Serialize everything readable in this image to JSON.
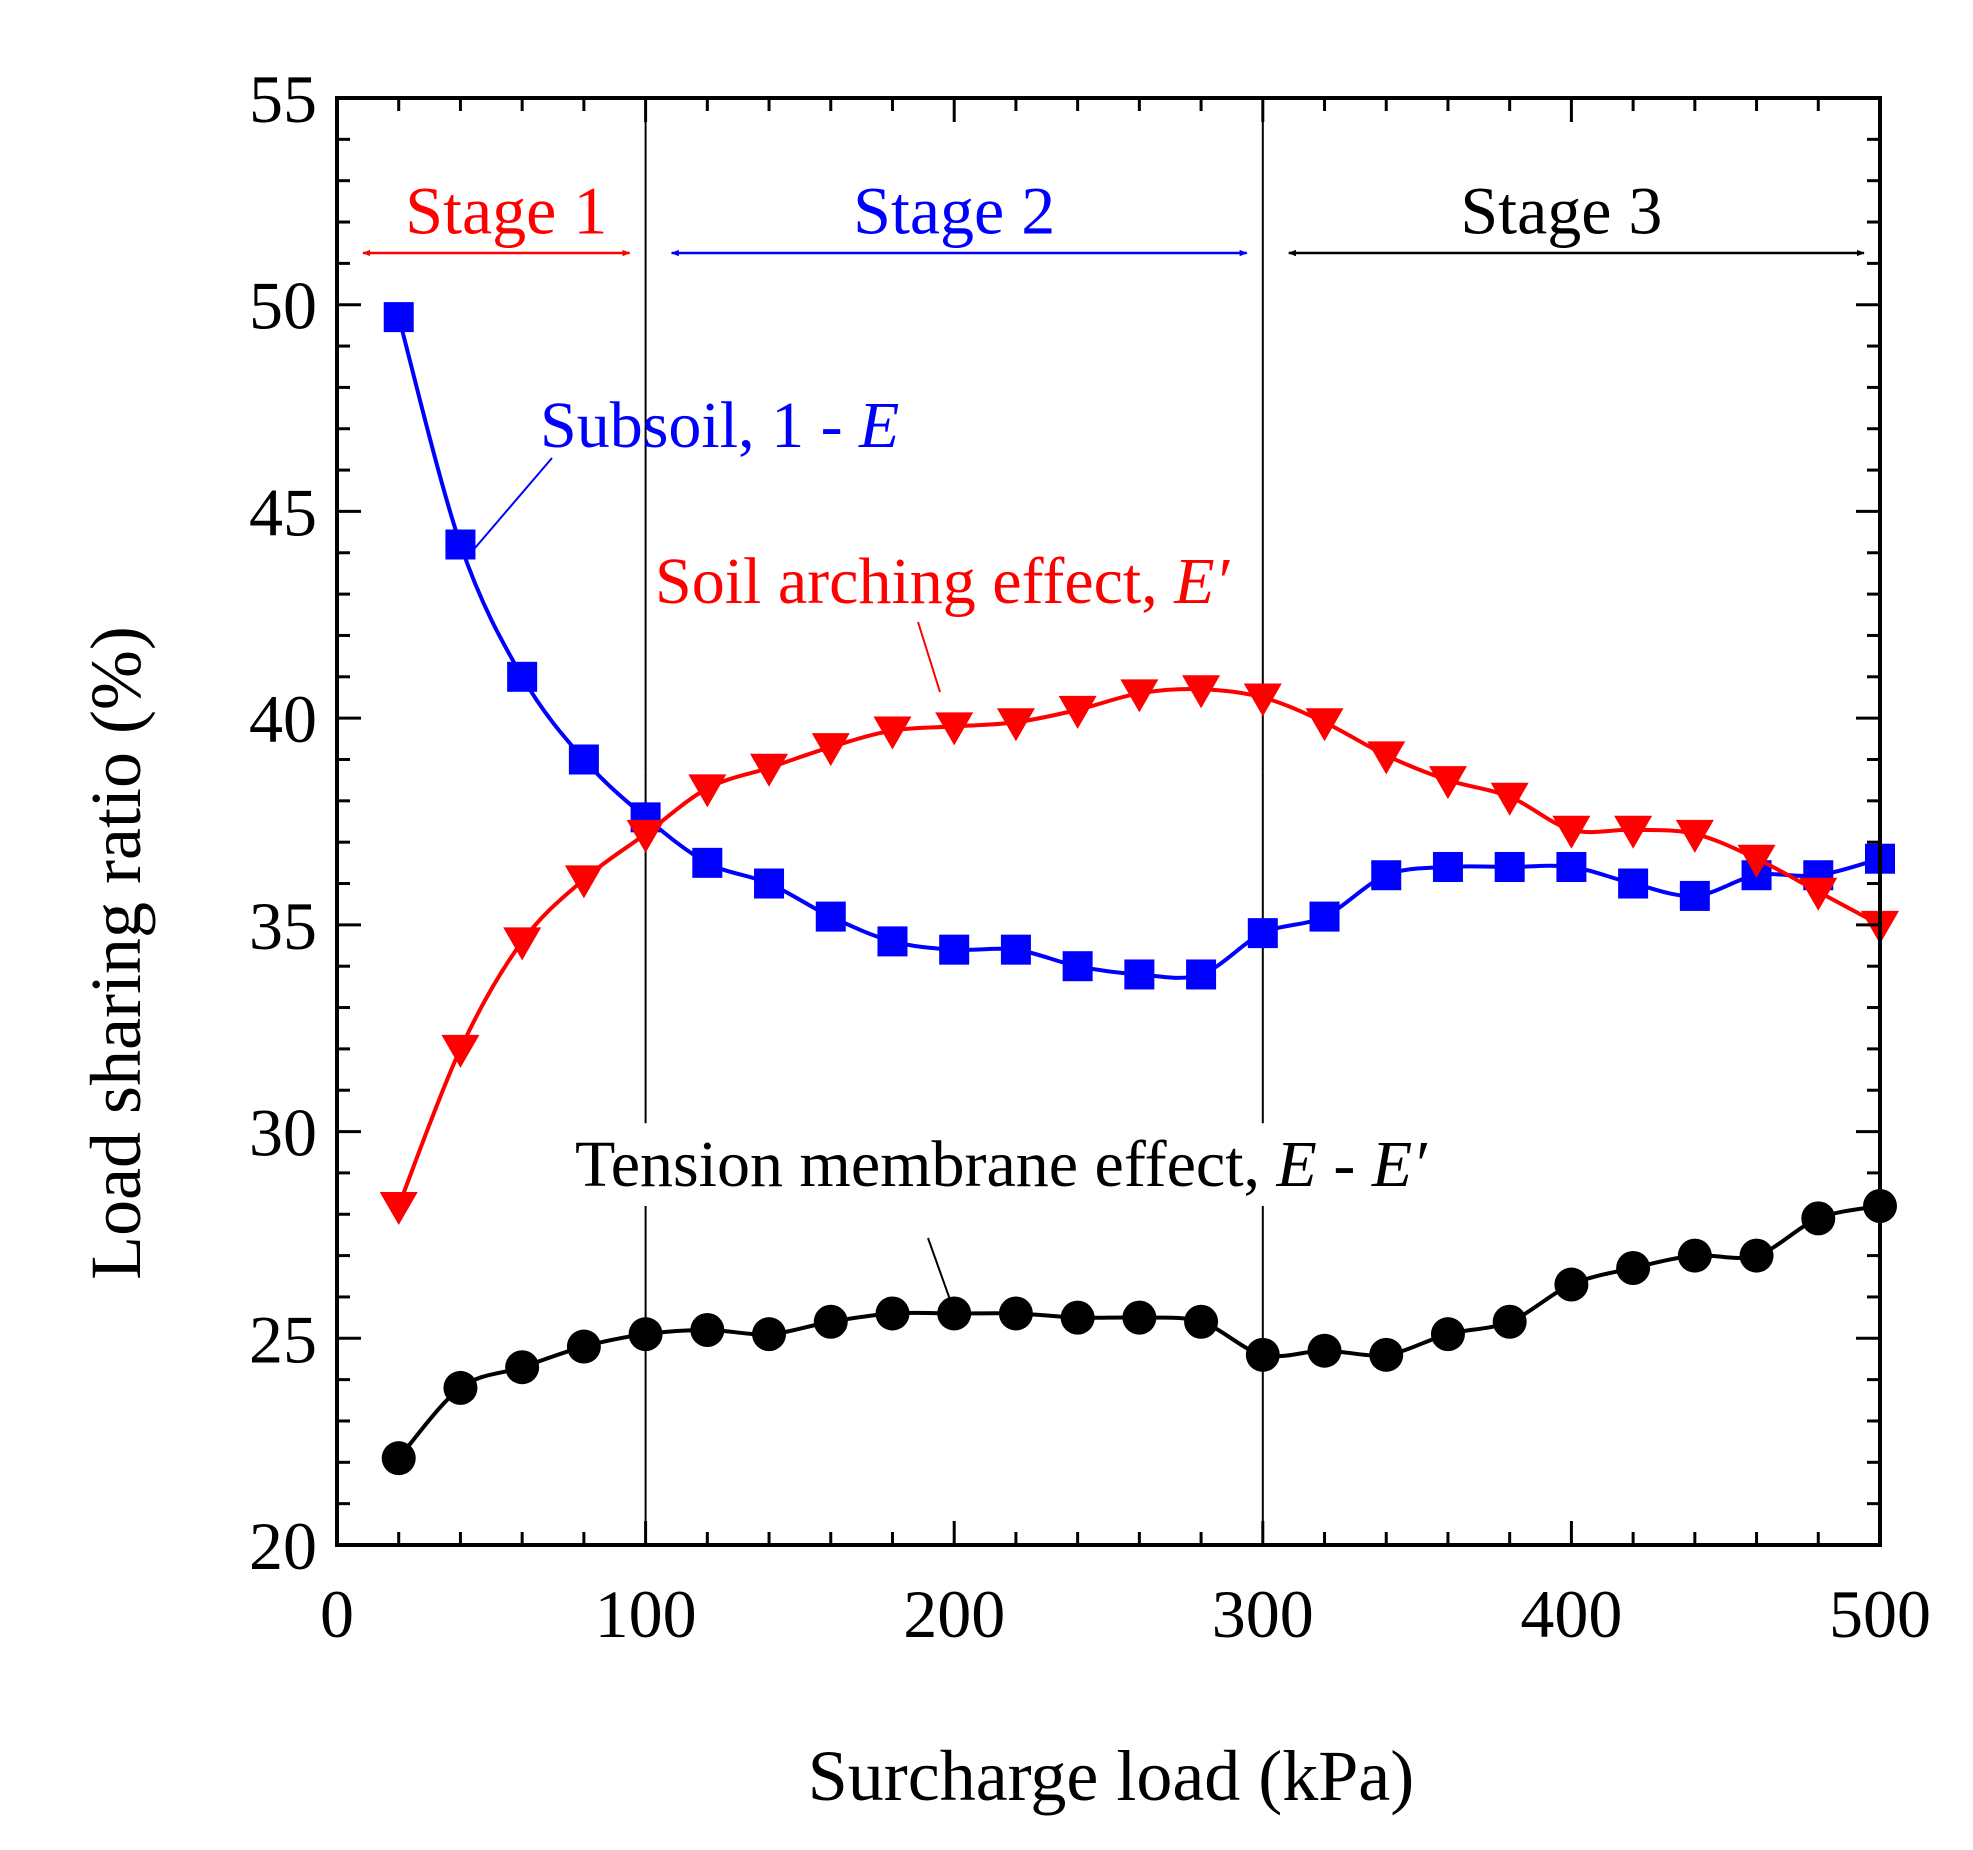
{
  "chart_data": {
    "type": "line",
    "title": "",
    "xlabel": "Surcharge load (kPa)",
    "ylabel": "Load sharing ratio (%)",
    "xlim": [
      0,
      500
    ],
    "ylim": [
      20,
      55
    ],
    "xticks": [
      0,
      100,
      200,
      300,
      400,
      500
    ],
    "yticks": [
      20,
      25,
      30,
      35,
      40,
      45,
      50,
      55
    ],
    "grid": false,
    "stage_boundaries": [
      100,
      300
    ],
    "stages": [
      {
        "label": "Stage 1",
        "from": 0,
        "to": 100,
        "color": "#ff0000"
      },
      {
        "label": "Stage 2",
        "from": 100,
        "to": 300,
        "color": "#0000ff"
      },
      {
        "label": "Stage 3",
        "from": 300,
        "to": 500,
        "color": "#000000"
      }
    ],
    "series": [
      {
        "key": "subsoil",
        "label_main": "Subsoil, 1 - ",
        "label_italic": "E",
        "color": "#0000ff",
        "marker": "square",
        "x": [
          20,
          40,
          60,
          80,
          100,
          120,
          140,
          160,
          180,
          200,
          220,
          240,
          260,
          280,
          300,
          320,
          340,
          360,
          380,
          400,
          420,
          440,
          460,
          480,
          500
        ],
        "y": [
          49.7,
          44.2,
          41.0,
          39.0,
          37.6,
          36.5,
          36.0,
          35.2,
          34.6,
          34.4,
          34.4,
          34.0,
          33.8,
          33.8,
          34.8,
          35.2,
          36.2,
          36.4,
          36.4,
          36.4,
          36.0,
          35.7,
          36.2,
          36.2,
          36.6
        ]
      },
      {
        "key": "arching",
        "label_main": "Soil arching effect, ",
        "label_italic": "E′",
        "color": "#ff0000",
        "marker": "triangle-down",
        "x": [
          20,
          40,
          60,
          80,
          100,
          120,
          140,
          160,
          180,
          200,
          220,
          240,
          260,
          280,
          300,
          320,
          340,
          360,
          380,
          400,
          420,
          440,
          460,
          480,
          500
        ],
        "y": [
          28.2,
          32.0,
          34.6,
          36.1,
          37.2,
          38.3,
          38.8,
          39.3,
          39.7,
          39.8,
          39.9,
          40.2,
          40.6,
          40.7,
          40.5,
          39.9,
          39.1,
          38.5,
          38.1,
          37.3,
          37.3,
          37.2,
          36.6,
          35.8,
          35.0
        ]
      },
      {
        "key": "membrane",
        "label_main": "Tension membrane effect, ",
        "label_italic": "E",
        "label_mid": " - ",
        "label_italic2": "E′",
        "color": "#000000",
        "marker": "circle",
        "x": [
          20,
          40,
          60,
          80,
          100,
          120,
          140,
          160,
          180,
          200,
          220,
          240,
          260,
          280,
          300,
          320,
          340,
          360,
          380,
          400,
          420,
          440,
          460,
          480,
          500
        ],
        "y": [
          22.1,
          23.8,
          24.3,
          24.8,
          25.1,
          25.2,
          25.1,
          25.4,
          25.6,
          25.6,
          25.6,
          25.5,
          25.5,
          25.4,
          24.6,
          24.7,
          24.6,
          25.1,
          25.4,
          26.3,
          26.7,
          27.0,
          27.0,
          27.9,
          28.2
        ]
      }
    ]
  }
}
